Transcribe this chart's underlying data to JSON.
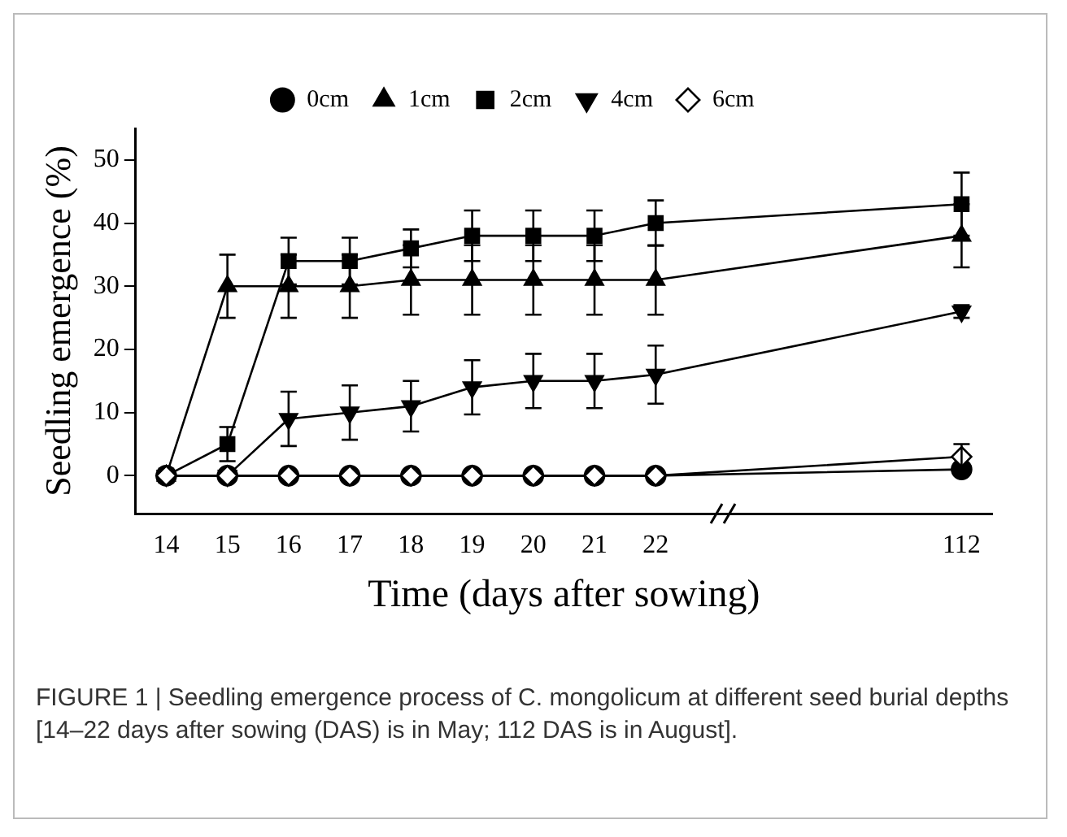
{
  "chart_data": {
    "type": "line",
    "xlabel": "Time (days after sowing)",
    "ylabel": "Seedling emergence (%)",
    "categories": [
      "14",
      "15",
      "16",
      "17",
      "18",
      "19",
      "20",
      "21",
      "22",
      null,
      null,
      null,
      null,
      "112"
    ],
    "ylim": [
      -6,
      55
    ],
    "yticks": [
      0,
      10,
      20,
      30,
      40,
      50
    ],
    "grid": false,
    "legend": "top",
    "series": [
      {
        "name": "0cm",
        "color": "#000000",
        "marker": "circle",
        "values": [
          0,
          0,
          0,
          0,
          0,
          0,
          0,
          0,
          0,
          null,
          null,
          null,
          null,
          1
        ],
        "errors": [
          null,
          null,
          null,
          null,
          null,
          null,
          null,
          null,
          null,
          null,
          null,
          null,
          null,
          null
        ]
      },
      {
        "name": "1cm",
        "color": "#000000",
        "marker": "triangle",
        "values": [
          0,
          30,
          30,
          30,
          31,
          31,
          31,
          31,
          31,
          null,
          null,
          null,
          null,
          38
        ],
        "errors": [
          null,
          5,
          5,
          5,
          5.5,
          5.5,
          5.5,
          5.5,
          5.5,
          null,
          null,
          null,
          null,
          5
        ]
      },
      {
        "name": "2cm",
        "color": "#000000",
        "marker": "square",
        "values": [
          0,
          5,
          34,
          34,
          36,
          38,
          38,
          38,
          40,
          null,
          null,
          null,
          null,
          43
        ],
        "errors": [
          null,
          2.7,
          3.7,
          3.7,
          3,
          4,
          4,
          4,
          3.6,
          null,
          null,
          null,
          null,
          5
        ]
      },
      {
        "name": "4cm",
        "color": "#000000",
        "marker": "triangle-down",
        "values": [
          0,
          0,
          9,
          10,
          11,
          14,
          15,
          15,
          16,
          null,
          null,
          null,
          null,
          26
        ],
        "errors": [
          null,
          null,
          4.3,
          4.3,
          4,
          4.3,
          4.3,
          4.3,
          4.6,
          null,
          null,
          null,
          null,
          1
        ]
      },
      {
        "name": "6cm",
        "color": "#000000",
        "marker": "diamond",
        "values": [
          0,
          0,
          0,
          0,
          0,
          0,
          0,
          0,
          0,
          null,
          null,
          null,
          null,
          3
        ],
        "errors": [
          null,
          null,
          null,
          null,
          null,
          null,
          null,
          null,
          null,
          null,
          null,
          null,
          null,
          2
        ]
      }
    ],
    "annotations": [
      "FIGURE 1 | Seedling emergence process of C. mongolicum at different seed burial depths [14–22 days after sowing (DAS) is in May; 112 DAS is in August]."
    ]
  }
}
